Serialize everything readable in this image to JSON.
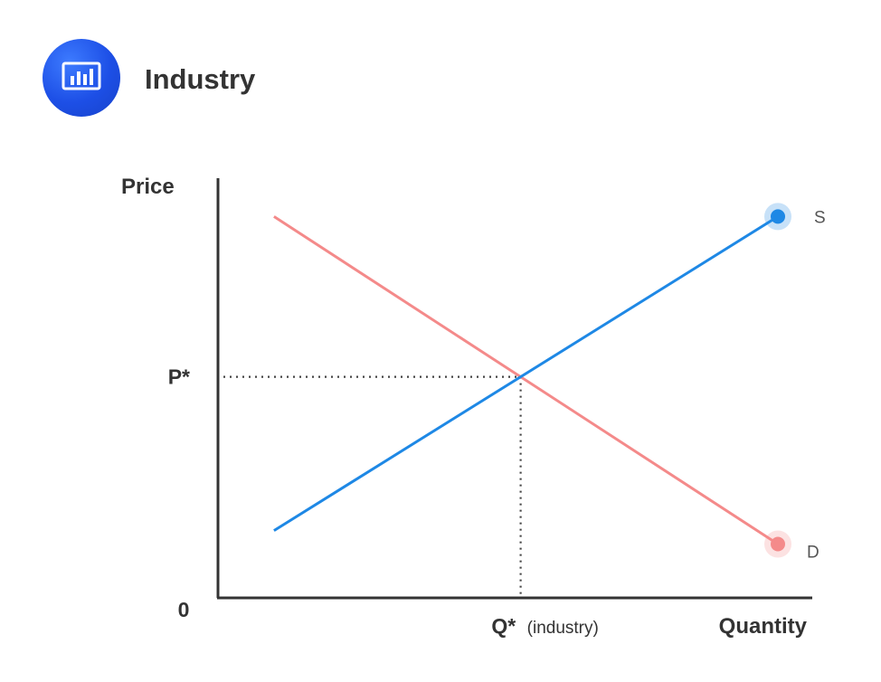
{
  "header": {
    "title": "Industry",
    "icon": "bar-chart-icon"
  },
  "chart_data": {
    "type": "line",
    "xlabel": "Quantity",
    "ylabel": "Price",
    "origin_label": "0",
    "equilibrium": {
      "price_label": "P*",
      "quantity_label": "Q*",
      "quantity_note": "(industry)"
    },
    "series": [
      {
        "name": "S",
        "color": "#1e88e5",
        "points": [
          [
            1,
            1.5
          ],
          [
            10,
            8.5
          ]
        ]
      },
      {
        "name": "D",
        "color": "#f48a8a",
        "points": [
          [
            1,
            8.5
          ],
          [
            10,
            1.2
          ]
        ]
      }
    ],
    "grid": false,
    "colors": {
      "axis": "#333333",
      "guide": "#444444"
    }
  }
}
